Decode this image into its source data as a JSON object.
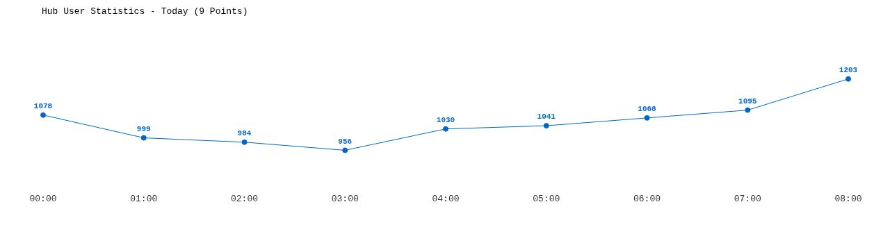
{
  "chart_data": {
    "type": "line",
    "title": "Hub User Statistics - Today (9 Points)",
    "categories": [
      "00:00",
      "01:00",
      "02:00",
      "03:00",
      "04:00",
      "05:00",
      "06:00",
      "07:00",
      "08:00"
    ],
    "series": [
      {
        "color": "#0066cc",
        "values": [
          1078,
          999,
          984,
          956,
          1030,
          1041,
          1068,
          1095,
          1203
        ]
      }
    ],
    "data_labels": true,
    "grid": false,
    "legend": false,
    "marker": "circle",
    "line_style": "solid"
  }
}
